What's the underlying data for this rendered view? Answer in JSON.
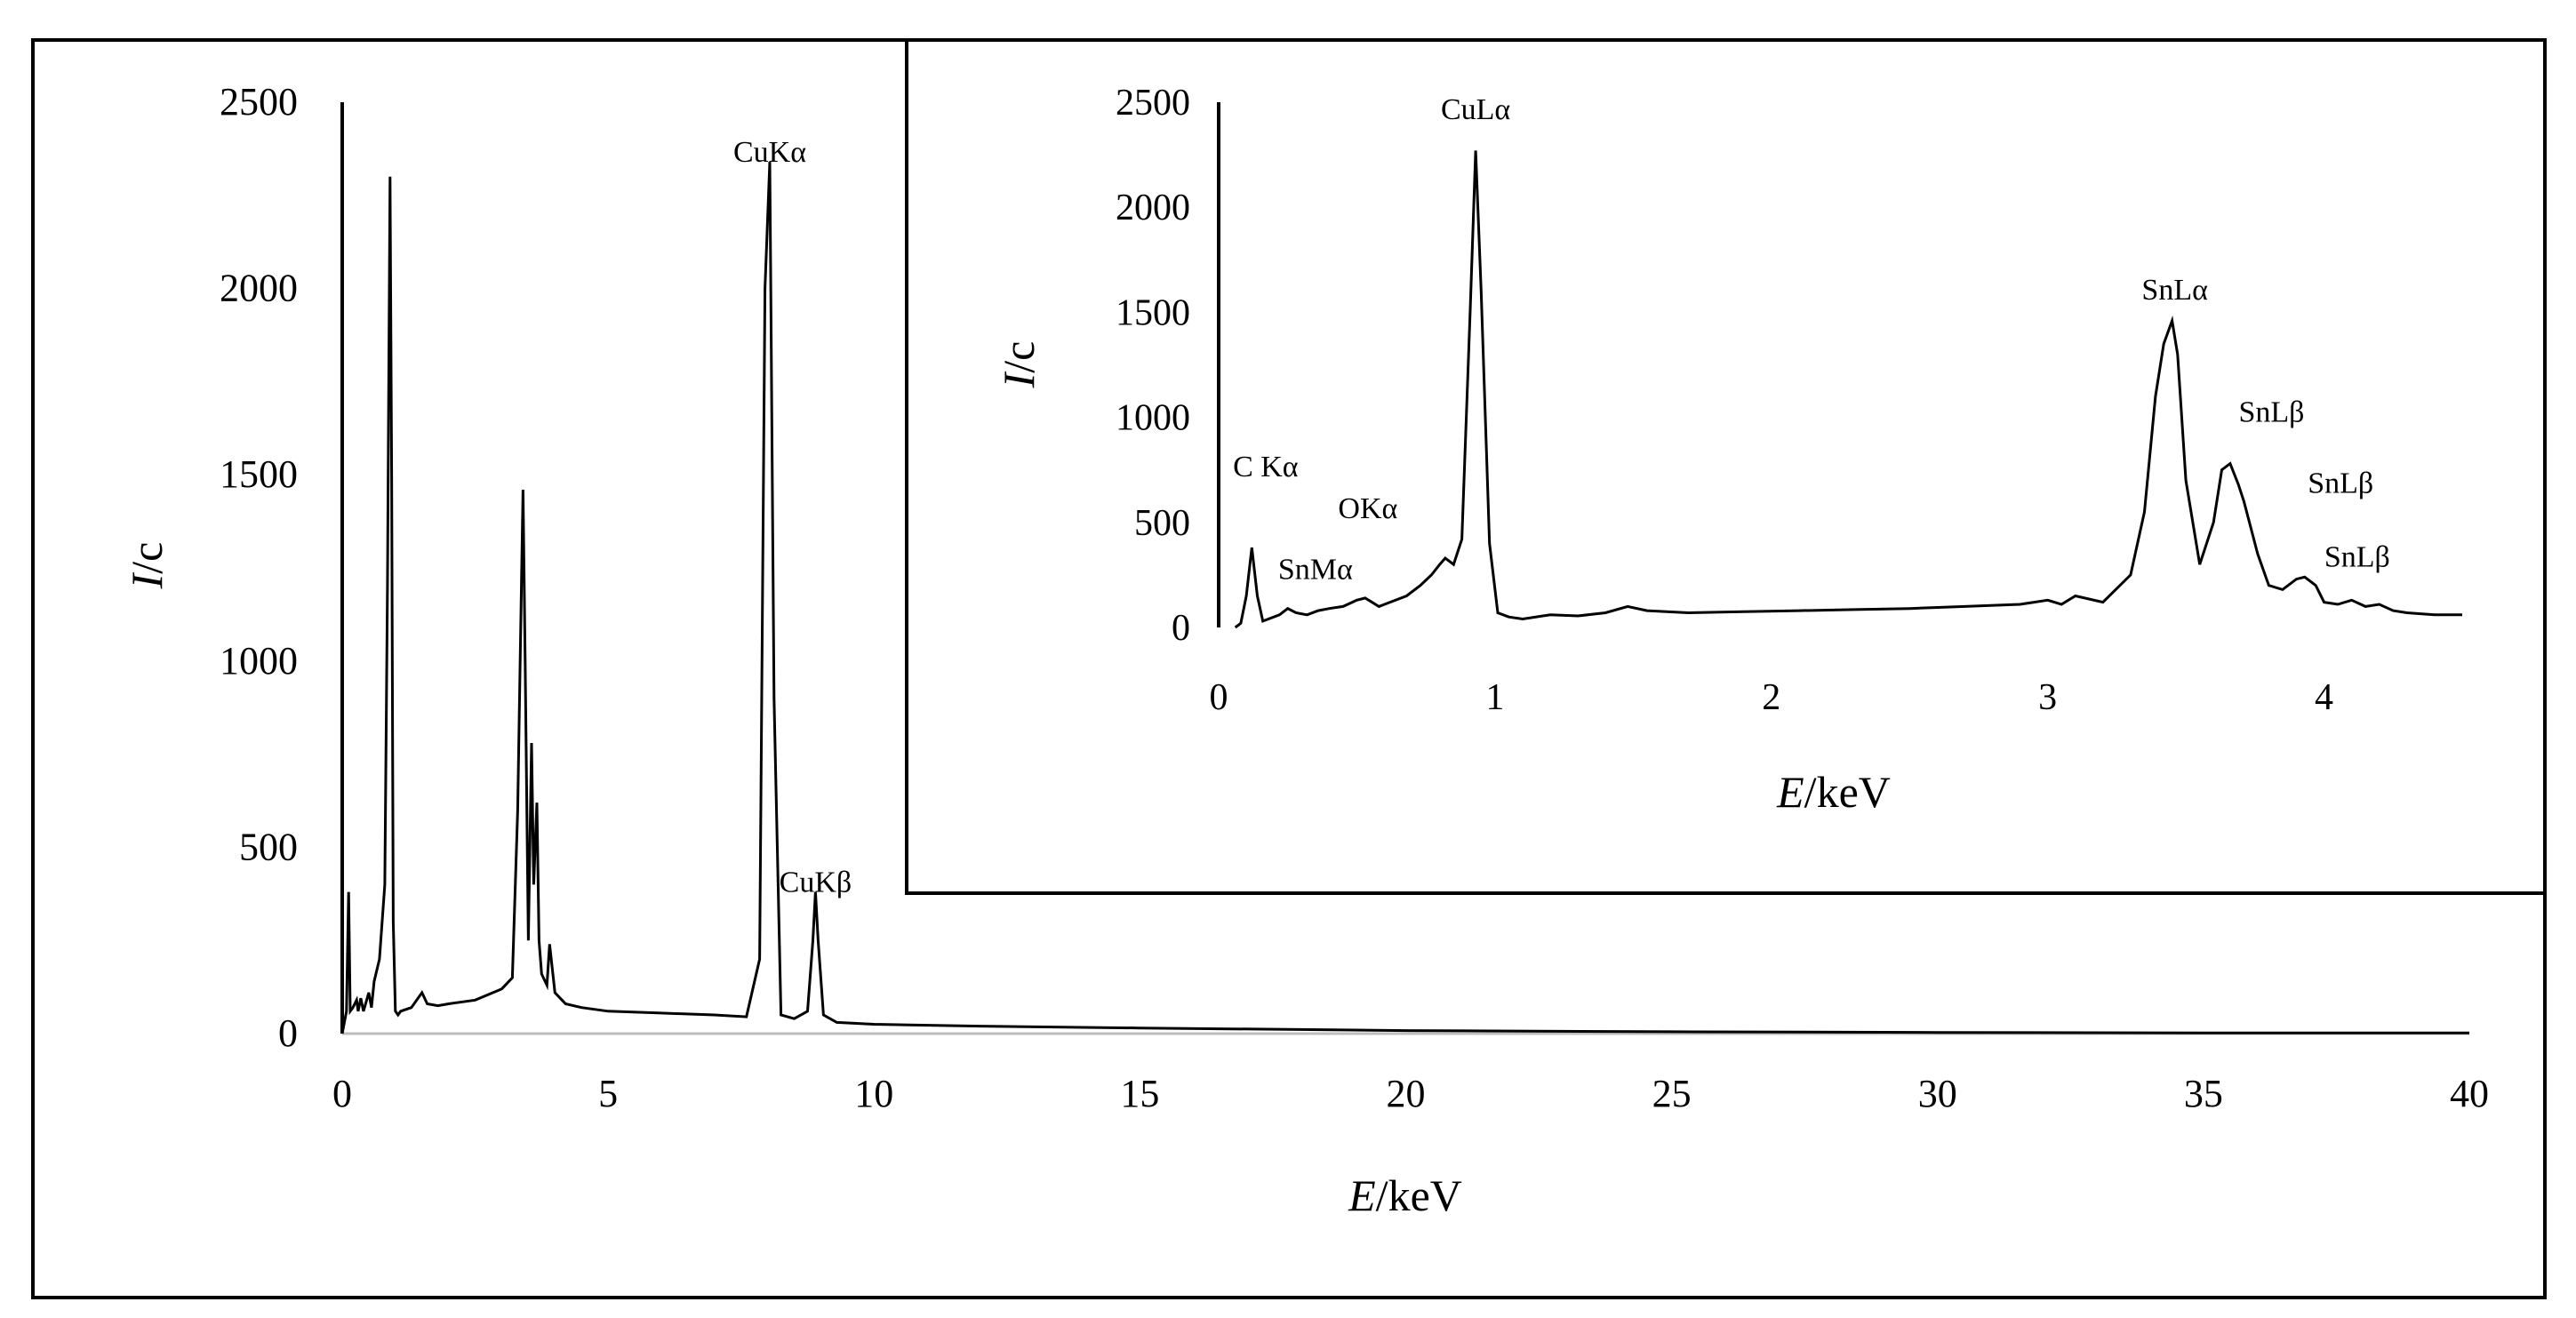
{
  "chart_data": [
    {
      "type": "line",
      "name": "main",
      "xlabel_var": "E",
      "xlabel_unit": "/keV",
      "ylabel_var": "I",
      "ylabel_unit": "/c",
      "xlim": [
        0,
        40
      ],
      "ylim": [
        0,
        2500
      ],
      "xticks": [
        0,
        5,
        10,
        15,
        20,
        25,
        30,
        35,
        40
      ],
      "yticks": [
        0,
        500,
        1000,
        1500,
        2000,
        2500
      ],
      "grid": false,
      "annotations": [
        {
          "text": "CuKα",
          "x": 8.04,
          "y": 2340
        },
        {
          "text": "CuKβ",
          "x": 8.9,
          "y": 380
        }
      ],
      "series": [
        {
          "x": [
            0.0,
            0.08,
            0.12,
            0.15,
            0.2,
            0.27,
            0.3,
            0.35,
            0.4,
            0.5,
            0.55,
            0.6,
            0.7,
            0.8,
            0.85,
            0.9,
            0.93,
            0.96,
            1.0,
            1.05,
            1.1,
            1.3,
            1.5,
            1.6,
            1.8,
            2.0,
            2.5,
            3.0,
            3.2,
            3.3,
            3.4,
            3.44,
            3.5,
            3.56,
            3.6,
            3.66,
            3.7,
            3.75,
            3.85,
            3.9,
            4.0,
            4.2,
            4.5,
            5.0,
            6.0,
            7.0,
            7.6,
            7.85,
            7.95,
            8.04,
            8.12,
            8.25,
            8.5,
            8.75,
            8.85,
            8.9,
            8.95,
            9.05,
            9.3,
            10.0,
            12.0,
            15.0,
            20.0,
            25.0,
            30.0,
            35.0,
            40.0
          ],
          "values": [
            0,
            60,
            380,
            60,
            70,
            90,
            60,
            95,
            60,
            110,
            70,
            140,
            200,
            400,
            1200,
            2300,
            1500,
            300,
            60,
            50,
            60,
            70,
            110,
            80,
            75,
            80,
            90,
            120,
            150,
            600,
            1460,
            1000,
            250,
            780,
            400,
            620,
            250,
            160,
            130,
            240,
            110,
            80,
            70,
            60,
            55,
            50,
            45,
            200,
            2000,
            2340,
            900,
            50,
            40,
            60,
            250,
            380,
            250,
            50,
            30,
            25,
            20,
            15,
            8,
            5,
            3,
            2,
            2
          ]
        }
      ]
    },
    {
      "type": "line",
      "name": "inset",
      "xlabel_var": "E",
      "xlabel_unit": "/keV",
      "ylabel_var": "I",
      "ylabel_unit": "/c",
      "xlim": [
        0,
        4.5
      ],
      "ylim": [
        0,
        2500
      ],
      "xticks": [
        0,
        1,
        2,
        3,
        4
      ],
      "yticks": [
        0,
        500,
        1000,
        1500,
        2000,
        2500
      ],
      "grid": false,
      "annotations": [
        {
          "text": "C Kα",
          "x": 0.17,
          "y": 720
        },
        {
          "text": "SnMα",
          "x": 0.35,
          "y": 230
        },
        {
          "text": "OKα",
          "x": 0.54,
          "y": 520
        },
        {
          "text": "CuLα",
          "x": 0.93,
          "y": 2420
        },
        {
          "text": "SnLα",
          "x": 3.46,
          "y": 1560
        },
        {
          "text": "SnLβ",
          "x": 3.81,
          "y": 980
        },
        {
          "text": "SnLβ",
          "x": 4.06,
          "y": 640
        },
        {
          "text": "SnLβ",
          "x": 4.12,
          "y": 290
        }
      ],
      "series": [
        {
          "x": [
            0.06,
            0.08,
            0.1,
            0.12,
            0.14,
            0.16,
            0.18,
            0.22,
            0.25,
            0.28,
            0.32,
            0.36,
            0.4,
            0.45,
            0.5,
            0.53,
            0.58,
            0.62,
            0.68,
            0.73,
            0.77,
            0.8,
            0.82,
            0.85,
            0.88,
            0.91,
            0.93,
            0.95,
            0.98,
            1.01,
            1.05,
            1.1,
            1.2,
            1.3,
            1.4,
            1.48,
            1.55,
            1.7,
            1.9,
            2.1,
            2.3,
            2.5,
            2.7,
            2.9,
            3.0,
            3.05,
            3.1,
            3.2,
            3.3,
            3.35,
            3.39,
            3.42,
            3.45,
            3.47,
            3.5,
            3.55,
            3.6,
            3.63,
            3.66,
            3.69,
            3.71,
            3.73,
            3.76,
            3.8,
            3.85,
            3.9,
            3.93,
            3.97,
            4.0,
            4.05,
            4.1,
            4.15,
            4.2,
            4.25,
            4.3,
            4.4,
            4.5
          ],
          "values": [
            0,
            20,
            150,
            380,
            150,
            30,
            40,
            60,
            90,
            70,
            60,
            80,
            90,
            100,
            130,
            140,
            100,
            120,
            150,
            200,
            250,
            300,
            330,
            300,
            420,
            1500,
            2270,
            1600,
            400,
            70,
            50,
            40,
            60,
            55,
            70,
            100,
            80,
            70,
            75,
            80,
            85,
            90,
            100,
            110,
            130,
            110,
            150,
            120,
            250,
            550,
            1100,
            1350,
            1460,
            1300,
            700,
            300,
            500,
            750,
            780,
            680,
            600,
            500,
            350,
            200,
            180,
            230,
            240,
            200,
            120,
            110,
            130,
            100,
            110,
            80,
            70,
            60,
            60
          ]
        }
      ]
    }
  ]
}
